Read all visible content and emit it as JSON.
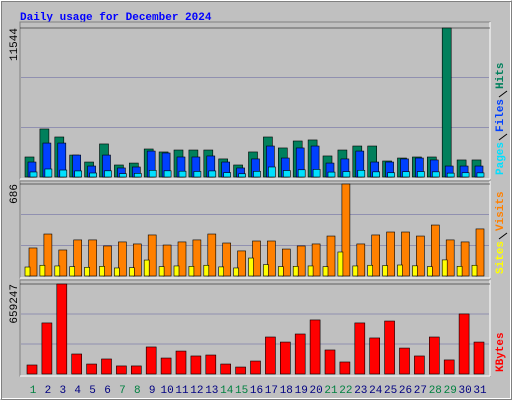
{
  "chart_data": [
    {
      "type": "bar",
      "title": "Daily usage for December 2024",
      "ylim": [
        0,
        11544
      ],
      "yticks": [
        11544
      ],
      "grid": true,
      "series": [
        {
          "name": "Pages",
          "color": "#00e0ff",
          "values": [
            390,
            620,
            540,
            470,
            310,
            480,
            260,
            280,
            520,
            480,
            450,
            430,
            470,
            340,
            250,
            440,
            775,
            500,
            560,
            590,
            380,
            420,
            520,
            400,
            330,
            410,
            420,
            400,
            300,
            330,
            320
          ]
        },
        {
          "name": "Files",
          "color": "#0040ff",
          "values": [
            1160,
            2630,
            2630,
            1700,
            850,
            1700,
            700,
            775,
            2010,
            1860,
            1550,
            1550,
            1630,
            1160,
            700,
            1400,
            2400,
            1470,
            2250,
            2400,
            1080,
            1400,
            2010,
            1160,
            1160,
            1400,
            1470,
            1320,
            850,
            850,
            850
          ]
        },
        {
          "name": "Hits",
          "color": "#00805c",
          "values": [
            1550,
            3720,
            3100,
            1700,
            1160,
            2560,
            930,
            1080,
            2170,
            1940,
            2090,
            2090,
            2090,
            1400,
            930,
            1940,
            3100,
            2250,
            2790,
            2870,
            1630,
            2090,
            2400,
            2400,
            1240,
            1470,
            1550,
            1550,
            11544,
            1320,
            1320
          ]
        }
      ]
    },
    {
      "type": "bar",
      "ylim": [
        0,
        686
      ],
      "yticks": [
        686
      ],
      "grid": true,
      "series": [
        {
          "name": "Sites",
          "color": "#ffff00",
          "values": [
            67,
            80,
            75,
            70,
            65,
            72,
            60,
            62,
            119,
            70,
            75,
            72,
            80,
            68,
            60,
            134,
            85,
            70,
            72,
            75,
            70,
            179,
            75,
            80,
            78,
            82,
            76,
            70,
            120,
            72,
            80
          ]
        },
        {
          "name": "Visits",
          "color": "#ff8000",
          "values": [
            209,
            313,
            194,
            269,
            269,
            224,
            254,
            239,
            306,
            231,
            254,
            269,
            313,
            246,
            187,
            261,
            261,
            201,
            224,
            239,
            298,
            686,
            239,
            306,
            328,
            328,
            298,
            380,
            269,
            254,
            351
          ]
        }
      ]
    },
    {
      "type": "bar",
      "ylim": [
        0,
        659247
      ],
      "yticks": [
        659247
      ],
      "grid": true,
      "categories": [
        "1",
        "2",
        "3",
        "4",
        "5",
        "6",
        "7",
        "8",
        "9",
        "10",
        "11",
        "12",
        "13",
        "14",
        "15",
        "16",
        "17",
        "18",
        "19",
        "20",
        "21",
        "22",
        "23",
        "24",
        "25",
        "26",
        "27",
        "28",
        "29",
        "30",
        "31"
      ],
      "category_colors": [
        "#008040",
        "#000080",
        "#000080",
        "#000080",
        "#000080",
        "#000080",
        "#008040",
        "#008040",
        "#000080",
        "#000080",
        "#000080",
        "#000080",
        "#000080",
        "#008040",
        "#008040",
        "#000080",
        "#000080",
        "#000080",
        "#000080",
        "#000080",
        "#008040",
        "#008040",
        "#000080",
        "#000080",
        "#000080",
        "#000080",
        "#000080",
        "#008040",
        "#008040",
        "#000080",
        "#000080"
      ],
      "series": [
        {
          "name": "KBytes",
          "color": "#ff0000",
          "values": [
            66000,
            374000,
            659247,
            146500,
            73000,
            110000,
            59000,
            59000,
            198000,
            117000,
            168000,
            132000,
            139000,
            73000,
            51000,
            95000,
            271000,
            234000,
            293000,
            396000,
            176000,
            88000,
            374000,
            264000,
            388000,
            190000,
            132000,
            271000,
            103000,
            440000,
            234000
          ]
        }
      ]
    }
  ]
}
